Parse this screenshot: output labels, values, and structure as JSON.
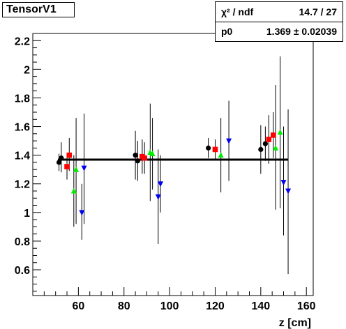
{
  "title": "TensorV1",
  "stats": {
    "row1_label": "χ² / ndf",
    "row1_value": "14.7 / 27",
    "row2_label": "p0",
    "row2_value": "1.369 ± 0.02039"
  },
  "chart_data": {
    "type": "scatter",
    "title": "TensorV1",
    "xlabel": "z [cm]",
    "ylabel": "",
    "xlim": [
      40,
      163
    ],
    "ylim": [
      0.42,
      2.25
    ],
    "xticks": [
      60,
      80,
      100,
      120,
      140,
      160
    ],
    "yticks": [
      0.6,
      0.8,
      1.0,
      1.2,
      1.4,
      1.6,
      1.8,
      2.0,
      2.2
    ],
    "xtick_labels": [
      "60",
      "80",
      "100",
      "120",
      "140",
      "160"
    ],
    "ytick_labels": [
      "0.6",
      "0.8",
      "1",
      "1.2",
      "1.4",
      "1.6",
      "1.8",
      "2",
      "2.2"
    ],
    "fit": {
      "p0": 1.369,
      "x_range": [
        51,
        152
      ]
    },
    "series": [
      {
        "color": "#000000",
        "marker": "circle",
        "points": [
          {
            "x": 51.5,
            "y": 1.35,
            "lo": 1.29,
            "hi": 1.41
          },
          {
            "x": 52.5,
            "y": 1.38,
            "lo": 1.28,
            "hi": 1.49
          },
          {
            "x": 85,
            "y": 1.4,
            "lo": 1.23,
            "hi": 1.57
          },
          {
            "x": 86,
            "y": 1.36,
            "lo": 1.22,
            "hi": 1.5
          },
          {
            "x": 117,
            "y": 1.45,
            "lo": 1.38,
            "hi": 1.52
          },
          {
            "x": 140,
            "y": 1.44,
            "lo": 1.27,
            "hi": 1.61
          },
          {
            "x": 142,
            "y": 1.48,
            "lo": 1.36,
            "hi": 1.6
          }
        ]
      },
      {
        "color": "#ff0000",
        "marker": "square",
        "points": [
          {
            "x": 55,
            "y": 1.32,
            "lo": 1.23,
            "hi": 1.41
          },
          {
            "x": 56,
            "y": 1.4,
            "lo": 1.29,
            "hi": 1.52
          },
          {
            "x": 88,
            "y": 1.39,
            "lo": 1.27,
            "hi": 1.51
          },
          {
            "x": 89,
            "y": 1.38,
            "lo": 1.27,
            "hi": 1.49
          },
          {
            "x": 120,
            "y": 1.44,
            "lo": 1.37,
            "hi": 1.51
          },
          {
            "x": 143.5,
            "y": 1.51,
            "lo": 1.34,
            "hi": 1.68
          },
          {
            "x": 145.5,
            "y": 1.54,
            "lo": 1.38,
            "hi": 1.7
          }
        ]
      },
      {
        "color": "#00ee00",
        "marker": "triangle-up",
        "points": [
          {
            "x": 58,
            "y": 1.15,
            "lo": 0.9,
            "hi": 1.4
          },
          {
            "x": 59,
            "y": 1.3,
            "lo": 0.92,
            "hi": 1.66
          },
          {
            "x": 91.5,
            "y": 1.42,
            "lo": 1.08,
            "hi": 1.76
          },
          {
            "x": 92.5,
            "y": 1.41,
            "lo": 1.16,
            "hi": 1.66
          },
          {
            "x": 122.5,
            "y": 1.4,
            "lo": 1.14,
            "hi": 1.66
          },
          {
            "x": 146.5,
            "y": 1.45,
            "lo": 1.02,
            "hi": 1.89
          },
          {
            "x": 148.5,
            "y": 1.56,
            "lo": 1.03,
            "hi": 2.09
          }
        ]
      },
      {
        "color": "#0000ee",
        "marker": "triangle-down",
        "points": [
          {
            "x": 61.5,
            "y": 1.0,
            "lo": 0.81,
            "hi": 1.2
          },
          {
            "x": 62.5,
            "y": 1.31,
            "lo": 0.92,
            "hi": 1.69
          },
          {
            "x": 95,
            "y": 1.11,
            "lo": 0.78,
            "hi": 1.44
          },
          {
            "x": 96,
            "y": 1.2,
            "lo": 1.0,
            "hi": 1.4
          },
          {
            "x": 126,
            "y": 1.5,
            "lo": 1.22,
            "hi": 1.78
          },
          {
            "x": 150,
            "y": 1.21,
            "lo": 0.84,
            "hi": 1.6
          },
          {
            "x": 152,
            "y": 1.15,
            "lo": 0.57,
            "hi": 1.72
          }
        ]
      }
    ]
  }
}
